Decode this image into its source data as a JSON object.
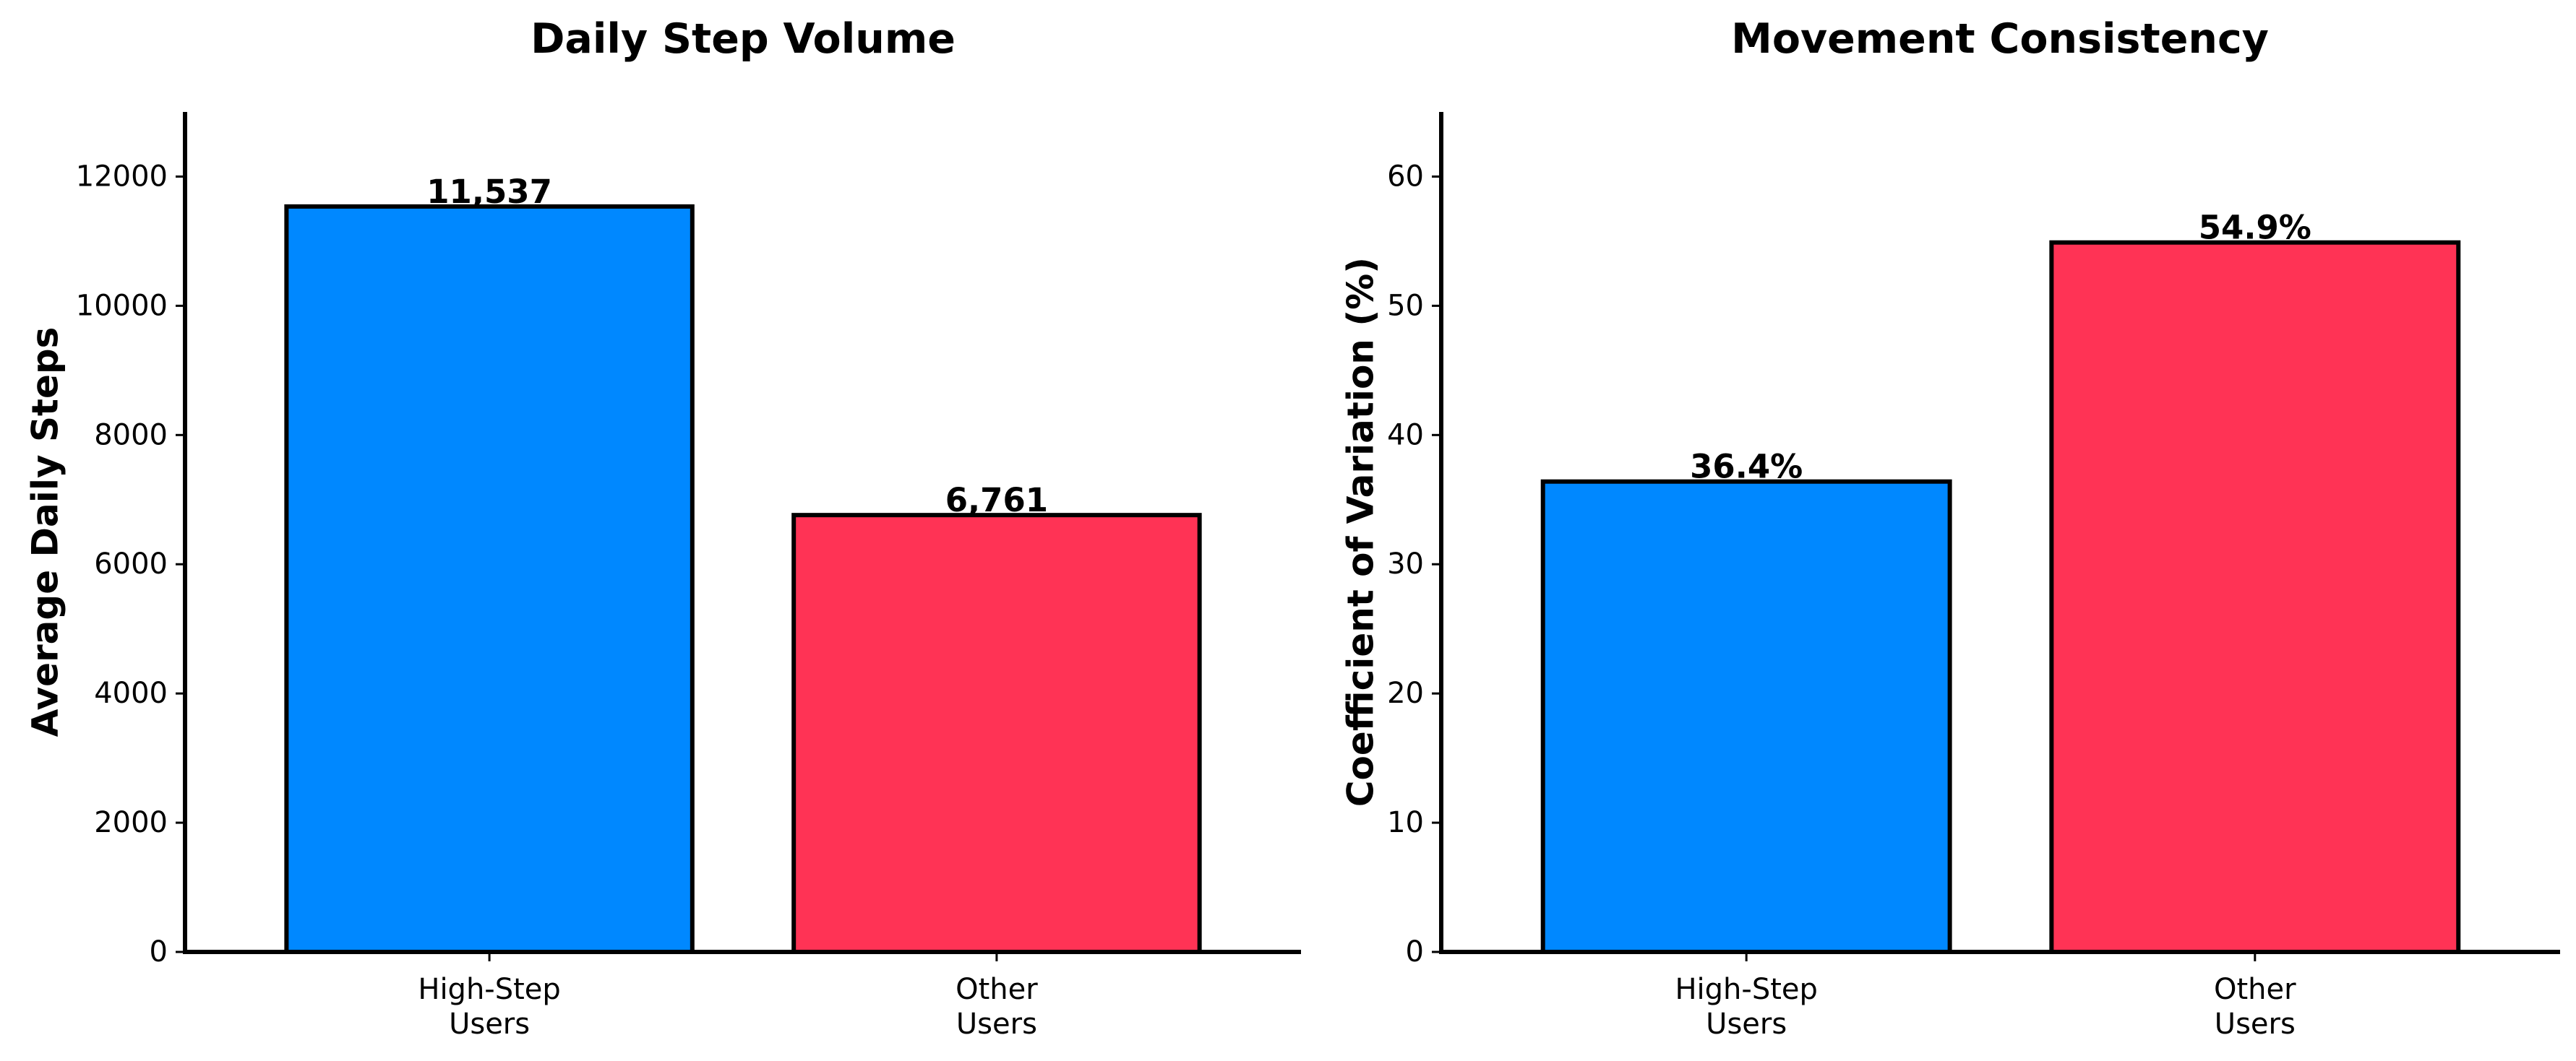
{
  "chart_data": [
    {
      "type": "bar",
      "title": "Daily Step Volume",
      "xlabel": "",
      "ylabel": "Average Daily Steps",
      "categories": [
        "High-Step\nUsers",
        "Other\nUsers"
      ],
      "values": [
        11537,
        6761
      ],
      "data_labels": [
        "11,537",
        "6,761"
      ],
      "bar_colors": [
        "#0088ff",
        "#ff3355"
      ],
      "ylim": [
        0,
        13000
      ],
      "yticks": [
        0,
        2000,
        4000,
        6000,
        8000,
        10000,
        12000
      ],
      "grid": false,
      "legend": "none"
    },
    {
      "type": "bar",
      "title": "Movement Consistency",
      "xlabel": "",
      "ylabel": "Coefficient of Variation (%)",
      "categories": [
        "High-Step\nUsers",
        "Other\nUsers"
      ],
      "values": [
        36.4,
        54.9
      ],
      "data_labels": [
        "36.4%",
        "54.9%"
      ],
      "bar_colors": [
        "#0088ff",
        "#ff3355"
      ],
      "ylim": [
        0,
        65
      ],
      "yticks": [
        0,
        10,
        20,
        30,
        40,
        50,
        60
      ],
      "grid": false,
      "legend": "none"
    }
  ]
}
